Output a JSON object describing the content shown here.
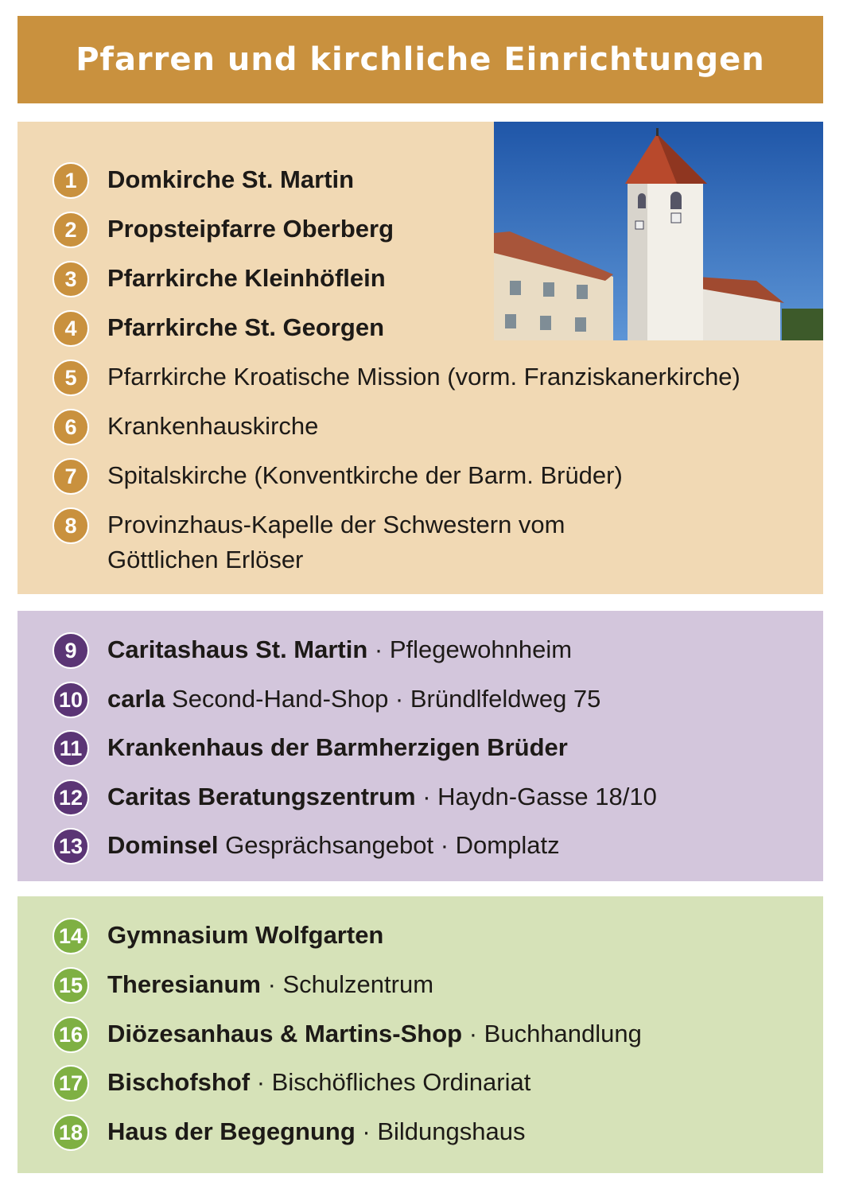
{
  "title": "Pfarren und kirchliche Einrichtungen",
  "colors": {
    "header": "#c9913e",
    "section1": "#f1d9b4",
    "section2": "#d3c6dc",
    "section3": "#d6e2b8",
    "badge1": "#c9913e",
    "badge2": "#5b3575",
    "badge3": "#7fb043"
  },
  "photo": {
    "subject": "church-tower-photo"
  },
  "parishes": [
    {
      "num": "1",
      "bold": "Domkirche St. Martin",
      "rest": ""
    },
    {
      "num": "2",
      "bold": "Propsteipfarre Oberberg",
      "rest": ""
    },
    {
      "num": "3",
      "bold": "Pfarrkirche Kleinhöflein",
      "rest": ""
    },
    {
      "num": "4",
      "bold": "Pfarrkirche St. Georgen",
      "rest": ""
    },
    {
      "num": "5",
      "bold": "",
      "rest": "Pfarrkirche Kroatische Mission (vorm. Franziskanerkirche)"
    },
    {
      "num": "6",
      "bold": "",
      "rest": "Krankenhauskirche"
    },
    {
      "num": "7",
      "bold": "",
      "rest": "Spitalskirche (Konventkirche der Barm. Brüder)"
    },
    {
      "num": "8",
      "bold": "",
      "rest": "Provinzhaus-Kapelle der Schwestern vom\nGöttlichen Erlöser"
    }
  ],
  "social": [
    {
      "num": "9",
      "bold": "Caritashaus St. Martin",
      "rest": " · Pflegewohnheim"
    },
    {
      "num": "10",
      "bold": "carla",
      "rest": " Second-Hand-Shop · Bründlfeldweg 75"
    },
    {
      "num": "11",
      "bold": "Krankenhaus der Barmherzigen Brüder",
      "rest": ""
    },
    {
      "num": "12",
      "bold": "Caritas Beratungszentrum",
      "rest": " · Haydn-Gasse 18/10"
    },
    {
      "num": "13",
      "bold": "Dominsel",
      "rest": " Gesprächsangebot · Domplatz"
    }
  ],
  "education": [
    {
      "num": "14",
      "bold": "Gymnasium Wolfgarten",
      "rest": ""
    },
    {
      "num": "15",
      "bold": "Theresianum",
      "rest": " · Schulzentrum"
    },
    {
      "num": "16",
      "bold": "Diözesanhaus & Martins-Shop",
      "rest": " · Buchhandlung"
    },
    {
      "num": "17",
      "bold": "Bischofshof",
      "rest": " · Bischöfliches Ordinariat"
    },
    {
      "num": "18",
      "bold": "Haus der Begegnung",
      "rest": " · Bildungshaus"
    }
  ]
}
